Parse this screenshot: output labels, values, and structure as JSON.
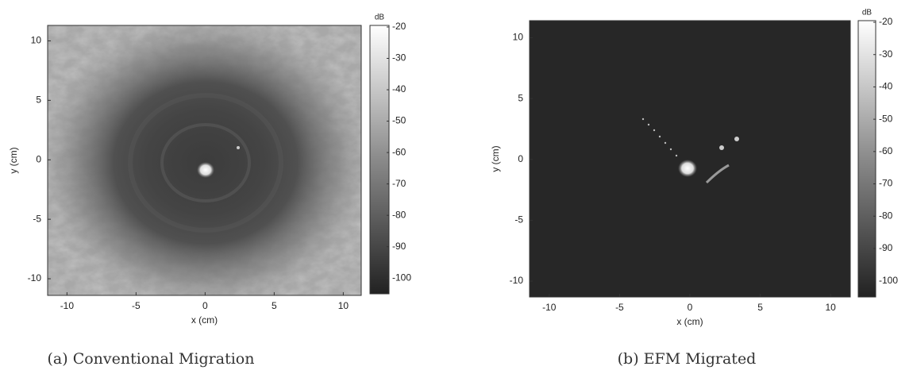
{
  "chart_data": [
    {
      "type": "heatmap",
      "caption": "(a) Conventional Migration",
      "xlabel": "x (cm)",
      "ylabel": "y (cm)",
      "xlim": [
        -11.4,
        11.3
      ],
      "ylim": [
        -11.4,
        11.3
      ],
      "xticks": [
        -10,
        -5,
        0,
        5,
        10
      ],
      "yticks": [
        -10,
        -5,
        0,
        5,
        10
      ],
      "colorbar": {
        "label": "dB",
        "clim": [
          -105,
          -19.5
        ],
        "ticks": [
          -20,
          -30,
          -40,
          -50,
          -60,
          -70,
          -80,
          -90,
          -100
        ]
      }
    },
    {
      "type": "heatmap",
      "caption": "(b) EFM Migrated",
      "xlabel": "x (cm)",
      "ylabel": "y (cm)",
      "xlim": [
        -11.4,
        11.4
      ],
      "ylim": [
        -11.3,
        11.4
      ],
      "xticks": [
        -10,
        -5,
        0,
        5,
        10
      ],
      "yticks": [
        -10,
        -5,
        0,
        5,
        10
      ],
      "colorbar": {
        "label": "dB",
        "clim": [
          -105,
          -19.5
        ],
        "ticks": [
          -20,
          -30,
          -40,
          -50,
          -60,
          -70,
          -80,
          -90,
          -100
        ]
      }
    }
  ]
}
